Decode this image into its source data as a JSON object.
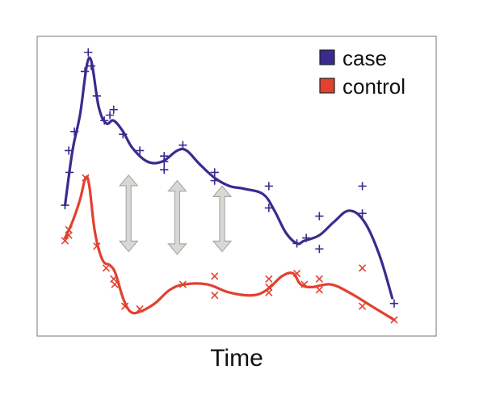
{
  "chart_data": {
    "type": "line",
    "title": "",
    "xlabel": "Time",
    "ylabel": "",
    "xlim": [
      0,
      100
    ],
    "ylim": [
      0,
      100
    ],
    "grid": false,
    "legend_position": "top-right",
    "series": [
      {
        "name": "case",
        "color": "#3b2a8f",
        "marker": "plus",
        "curve": [
          [
            4,
            42
          ],
          [
            6,
            62
          ],
          [
            8,
            75
          ],
          [
            10.5,
            96
          ],
          [
            13,
            78
          ],
          [
            15,
            72
          ],
          [
            17,
            73
          ],
          [
            19.5,
            69
          ],
          [
            22,
            63
          ],
          [
            26,
            58
          ],
          [
            30,
            58
          ],
          [
            34,
            62
          ],
          [
            36.5,
            62
          ],
          [
            40,
            57
          ],
          [
            44,
            52
          ],
          [
            48,
            49
          ],
          [
            52,
            48
          ],
          [
            57,
            46
          ],
          [
            60,
            40
          ],
          [
            63,
            32
          ],
          [
            66,
            28
          ],
          [
            68,
            29
          ],
          [
            72,
            31
          ],
          [
            76,
            36
          ],
          [
            80,
            40
          ],
          [
            84,
            36
          ],
          [
            88,
            24
          ],
          [
            91.5,
            8
          ]
        ],
        "points": [
          [
            4,
            42
          ],
          [
            5,
            62
          ],
          [
            5.2,
            54
          ],
          [
            6.5,
            69
          ],
          [
            9.3,
            91
          ],
          [
            10.2,
            98
          ],
          [
            11,
            93
          ],
          [
            12.5,
            82
          ],
          [
            14.5,
            73
          ],
          [
            16,
            75
          ],
          [
            17,
            77
          ],
          [
            19.5,
            68
          ],
          [
            24,
            62
          ],
          [
            30.5,
            58
          ],
          [
            30.5,
            60
          ],
          [
            30.5,
            55
          ],
          [
            35.5,
            64
          ],
          [
            44,
            54
          ],
          [
            44,
            51
          ],
          [
            58.5,
            49
          ],
          [
            58.5,
            41
          ],
          [
            66,
            28
          ],
          [
            68.5,
            30
          ],
          [
            72,
            38
          ],
          [
            72,
            26
          ],
          [
            83.5,
            49
          ],
          [
            83.5,
            39
          ],
          [
            92,
            6
          ]
        ]
      },
      {
        "name": "control",
        "color": "#e2412f",
        "marker": "x",
        "curve": [
          [
            4,
            30
          ],
          [
            6,
            36
          ],
          [
            8,
            44
          ],
          [
            9.5,
            52
          ],
          [
            10.5,
            49
          ],
          [
            12,
            32
          ],
          [
            14,
            22
          ],
          [
            16,
            20
          ],
          [
            17.5,
            17
          ],
          [
            19.5,
            8
          ],
          [
            21.5,
            3
          ],
          [
            24,
            3
          ],
          [
            28,
            6
          ],
          [
            32,
            11
          ],
          [
            36,
            13
          ],
          [
            42,
            13
          ],
          [
            48,
            10
          ],
          [
            54,
            9
          ],
          [
            58,
            11
          ],
          [
            62,
            16
          ],
          [
            65,
            17
          ],
          [
            67,
            13
          ],
          [
            70,
            12
          ],
          [
            75,
            13
          ],
          [
            80,
            10
          ],
          [
            86,
            5
          ],
          [
            92,
            0
          ]
        ],
        "points": [
          [
            4,
            29
          ],
          [
            5,
            31
          ],
          [
            5,
            33
          ],
          [
            9.5,
            52
          ],
          [
            12.5,
            27
          ],
          [
            15,
            19
          ],
          [
            17,
            15
          ],
          [
            17.3,
            13
          ],
          [
            20,
            5
          ],
          [
            24,
            4
          ],
          [
            35.5,
            13
          ],
          [
            44,
            16
          ],
          [
            44,
            9
          ],
          [
            58.5,
            15
          ],
          [
            58.5,
            10
          ],
          [
            58.5,
            12
          ],
          [
            66,
            17
          ],
          [
            68,
            13
          ],
          [
            72,
            15
          ],
          [
            72,
            11
          ],
          [
            83.5,
            19
          ],
          [
            83.5,
            5
          ],
          [
            92,
            0
          ]
        ]
      }
    ],
    "annotations": [
      {
        "type": "double-arrow",
        "x": 21,
        "y_from": 25,
        "y_to": 53
      },
      {
        "type": "double-arrow",
        "x": 34,
        "y_from": 24,
        "y_to": 51
      },
      {
        "type": "double-arrow",
        "x": 46,
        "y_from": 25,
        "y_to": 49
      }
    ]
  }
}
